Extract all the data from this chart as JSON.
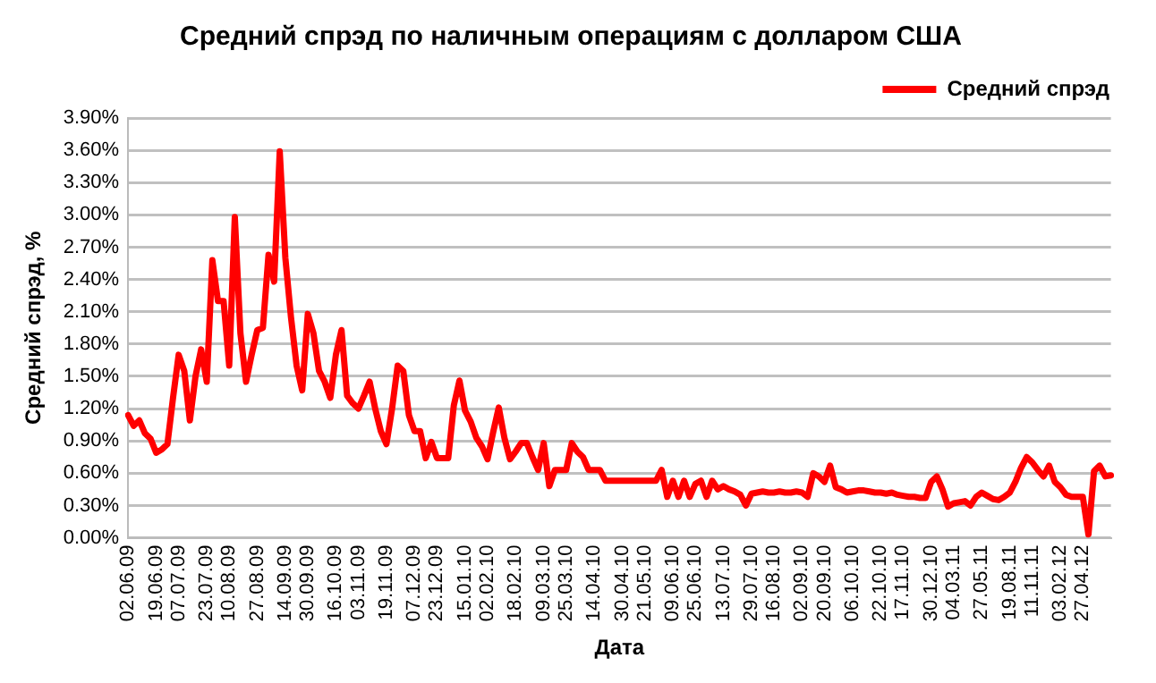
{
  "chart_data": {
    "type": "line",
    "title": "Средний спрэд по наличным операциям с долларом США",
    "xlabel": "Дата",
    "ylabel": "Средний спрэд, %",
    "categories": [
      "02.06.09",
      null,
      null,
      null,
      null,
      "19.06.09",
      null,
      null,
      null,
      "07.07.09",
      null,
      null,
      null,
      null,
      "23.07.09",
      null,
      null,
      null,
      "10.08.09",
      null,
      null,
      null,
      null,
      "27.08.09",
      null,
      null,
      null,
      null,
      "14.09.09",
      null,
      null,
      null,
      "30.09.09",
      null,
      null,
      null,
      null,
      "16.10.09",
      null,
      null,
      null,
      "03.11.09",
      null,
      null,
      null,
      null,
      "19.11.09",
      null,
      null,
      null,
      null,
      "07.12.09",
      null,
      null,
      null,
      "23.12.09",
      null,
      null,
      null,
      null,
      "15.01.10",
      null,
      null,
      null,
      "02.02.10",
      null,
      null,
      null,
      null,
      "18.02.10",
      null,
      null,
      null,
      null,
      "09.03.10",
      null,
      null,
      null,
      "25.03.10",
      null,
      null,
      null,
      null,
      "14.04.10",
      null,
      null,
      null,
      null,
      "30.04.10",
      null,
      null,
      null,
      "21.05.10",
      null,
      null,
      null,
      null,
      "09.06.10",
      null,
      null,
      null,
      "25.06.10",
      null,
      null,
      null,
      null,
      "13.07.10",
      null,
      null,
      null,
      null,
      "29.07.10",
      null,
      null,
      null,
      "16.08.10",
      null,
      null,
      null,
      null,
      "02.09.10",
      null,
      null,
      null,
      "20.09.10",
      null,
      null,
      null,
      null,
      "06.10.10",
      null,
      null,
      null,
      null,
      "22.10.10",
      null,
      null,
      null,
      "17.11.10",
      null,
      null,
      null,
      null,
      "30.12.10",
      null,
      null,
      null,
      "04.03.11",
      null,
      null,
      null,
      null,
      "27.05.11",
      null,
      null,
      null,
      null,
      "19.08.11",
      null,
      null,
      null,
      "11.11.11",
      null,
      null,
      null,
      null,
      "03.02.12",
      null,
      null,
      null,
      "27.04.12",
      null,
      null,
      null,
      null,
      null
    ],
    "series": [
      {
        "name": "Средний спрэд",
        "color": "#ff0000",
        "values": [
          1.14,
          1.04,
          1.09,
          0.97,
          0.92,
          0.79,
          0.82,
          0.87,
          1.3,
          1.7,
          1.55,
          1.09,
          1.5,
          1.75,
          1.45,
          2.58,
          2.2,
          2.2,
          1.6,
          2.98,
          1.9,
          1.45,
          1.7,
          1.93,
          1.95,
          2.63,
          2.38,
          3.59,
          2.6,
          2.05,
          1.6,
          1.37,
          2.08,
          1.9,
          1.55,
          1.45,
          1.3,
          1.7,
          1.93,
          1.32,
          1.25,
          1.2,
          1.32,
          1.45,
          1.2,
          0.99,
          0.87,
          1.2,
          1.6,
          1.55,
          1.14,
          0.99,
          0.99,
          0.74,
          0.89,
          0.74,
          0.74,
          0.74,
          1.23,
          1.46,
          1.18,
          1.08,
          0.93,
          0.85,
          0.73,
          0.98,
          1.21,
          0.93,
          0.73,
          0.8,
          0.88,
          0.88,
          0.75,
          0.63,
          0.88,
          0.48,
          0.63,
          0.63,
          0.63,
          0.88,
          0.8,
          0.75,
          0.63,
          0.63,
          0.63,
          0.53,
          0.53,
          0.53,
          0.53,
          0.53,
          0.53,
          0.53,
          0.53,
          0.53,
          0.53,
          0.63,
          0.38,
          0.53,
          0.38,
          0.53,
          0.38,
          0.5,
          0.53,
          0.38,
          0.53,
          0.45,
          0.48,
          0.45,
          0.43,
          0.4,
          0.3,
          0.41,
          0.42,
          0.43,
          0.42,
          0.42,
          0.43,
          0.42,
          0.42,
          0.43,
          0.42,
          0.38,
          0.6,
          0.57,
          0.52,
          0.67,
          0.47,
          0.45,
          0.42,
          0.43,
          0.44,
          0.44,
          0.43,
          0.42,
          0.42,
          0.41,
          0.42,
          0.4,
          0.39,
          0.38,
          0.38,
          0.37,
          0.37,
          0.52,
          0.57,
          0.45,
          0.29,
          0.32,
          0.33,
          0.34,
          0.3,
          0.38,
          0.42,
          0.39,
          0.36,
          0.35,
          0.38,
          0.42,
          0.52,
          0.65,
          0.75,
          0.7,
          0.63,
          0.57,
          0.67,
          0.52,
          0.47,
          0.4,
          0.38,
          0.38,
          0.38,
          0.03,
          0.62,
          0.67,
          0.57,
          0.58
        ]
      }
    ],
    "ylim": [
      0,
      3.9
    ],
    "yticks": [
      {
        "value": 0,
        "label": "0.00%"
      },
      {
        "value": 0.3,
        "label": "0.30%"
      },
      {
        "value": 0.6,
        "label": "0.60%"
      },
      {
        "value": 0.9,
        "label": "0.90%"
      },
      {
        "value": 1.2,
        "label": "1.20%"
      },
      {
        "value": 1.5,
        "label": "1.50%"
      },
      {
        "value": 1.8,
        "label": "1.80%"
      },
      {
        "value": 2.1,
        "label": "2.10%"
      },
      {
        "value": 2.4,
        "label": "2.40%"
      },
      {
        "value": 2.7,
        "label": "2.70%"
      },
      {
        "value": 3.0,
        "label": "3.00%"
      },
      {
        "value": 3.3,
        "label": "3.30%"
      },
      {
        "value": 3.6,
        "label": "3.60%"
      },
      {
        "value": 3.9,
        "label": "3.90%"
      }
    ],
    "grid": "y",
    "legend": "top right",
    "marker": "none",
    "line_style": "solid"
  }
}
